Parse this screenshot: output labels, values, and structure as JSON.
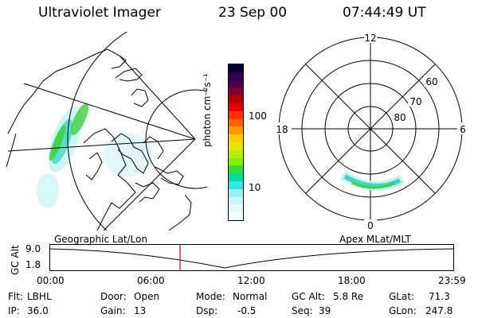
{
  "header": {
    "title": "Ultraviolet Imager",
    "date": "23 Sep 00",
    "time": "07:44:49 UT"
  },
  "colorbar": {
    "label": "photon cm⁻²s⁻¹",
    "ticks": [
      "100",
      "10"
    ],
    "colors": [
      "#000033",
      "#33004d",
      "#4d004d",
      "#800033",
      "#b30000",
      "#e60000",
      "#ff3300",
      "#ff6600",
      "#ff9900",
      "#ffcc00",
      "#e6e600",
      "#b3f000",
      "#80f000",
      "#33e033",
      "#00d9a0",
      "#33e6e6",
      "#99f0f0",
      "#ccf5f5",
      "#e6fafa",
      "#f5ffff"
    ]
  },
  "polar": {
    "labels": {
      "top": "12",
      "bottom": "0",
      "left": "18",
      "right": "6"
    },
    "lat_labels": [
      "60",
      "70",
      "80"
    ]
  },
  "panels": {
    "left_caption": "Geographic Lat/Lon",
    "right_caption": "Apex MLat/MLT"
  },
  "timeline": {
    "ylabel": "GC Alt",
    "yticks": [
      "9.0",
      "1.8"
    ],
    "xticks": [
      "00:00",
      "06:00",
      "12:00",
      "18:00",
      "23:59"
    ],
    "marker_hour": 7.75
  },
  "info": {
    "flt_label": "Flt:",
    "flt_value": "LBHL",
    "ip_label": "IP:",
    "ip_value": "36.0",
    "door_label": "Door:",
    "door_value": "Open",
    "gain_label": "Gain:",
    "gain_value": "13",
    "mode_label": "Mode:",
    "mode_value": "Normal",
    "dsp_label": "Dsp:",
    "dsp_value": "-0.5",
    "gcalt_label": "GC Alt:",
    "gcalt_value": "5.8 Re",
    "seq_label": "Seq:",
    "seq_value": "39",
    "glat_label": "GLat:",
    "glat_value": "71.3",
    "glon_label": "GLon:",
    "glon_value": "247.8"
  }
}
